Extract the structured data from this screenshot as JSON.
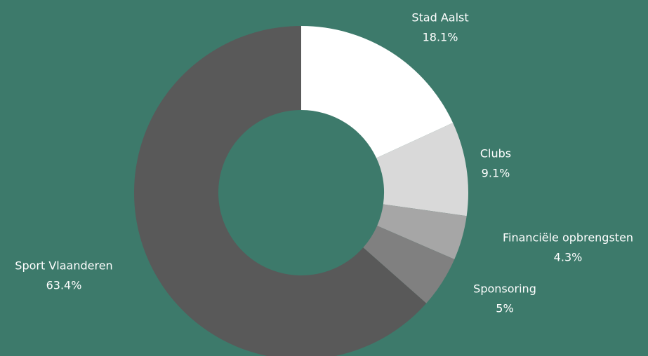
{
  "chart_data": {
    "type": "donut",
    "categories": [
      "Stad Aalst",
      "Clubs",
      "Financiële opbrengsten",
      "Sponsoring",
      "Sport Vlaanderen"
    ],
    "values": [
      18.1,
      9.1,
      4.3,
      5,
      63.4
    ],
    "value_labels": [
      "18.1%",
      "9.1%",
      "4.3%",
      "5%",
      "63.4%"
    ],
    "colors": [
      "#ffffff",
      "#d9d9d9",
      "#a6a6a6",
      "#808080",
      "#595959"
    ]
  }
}
